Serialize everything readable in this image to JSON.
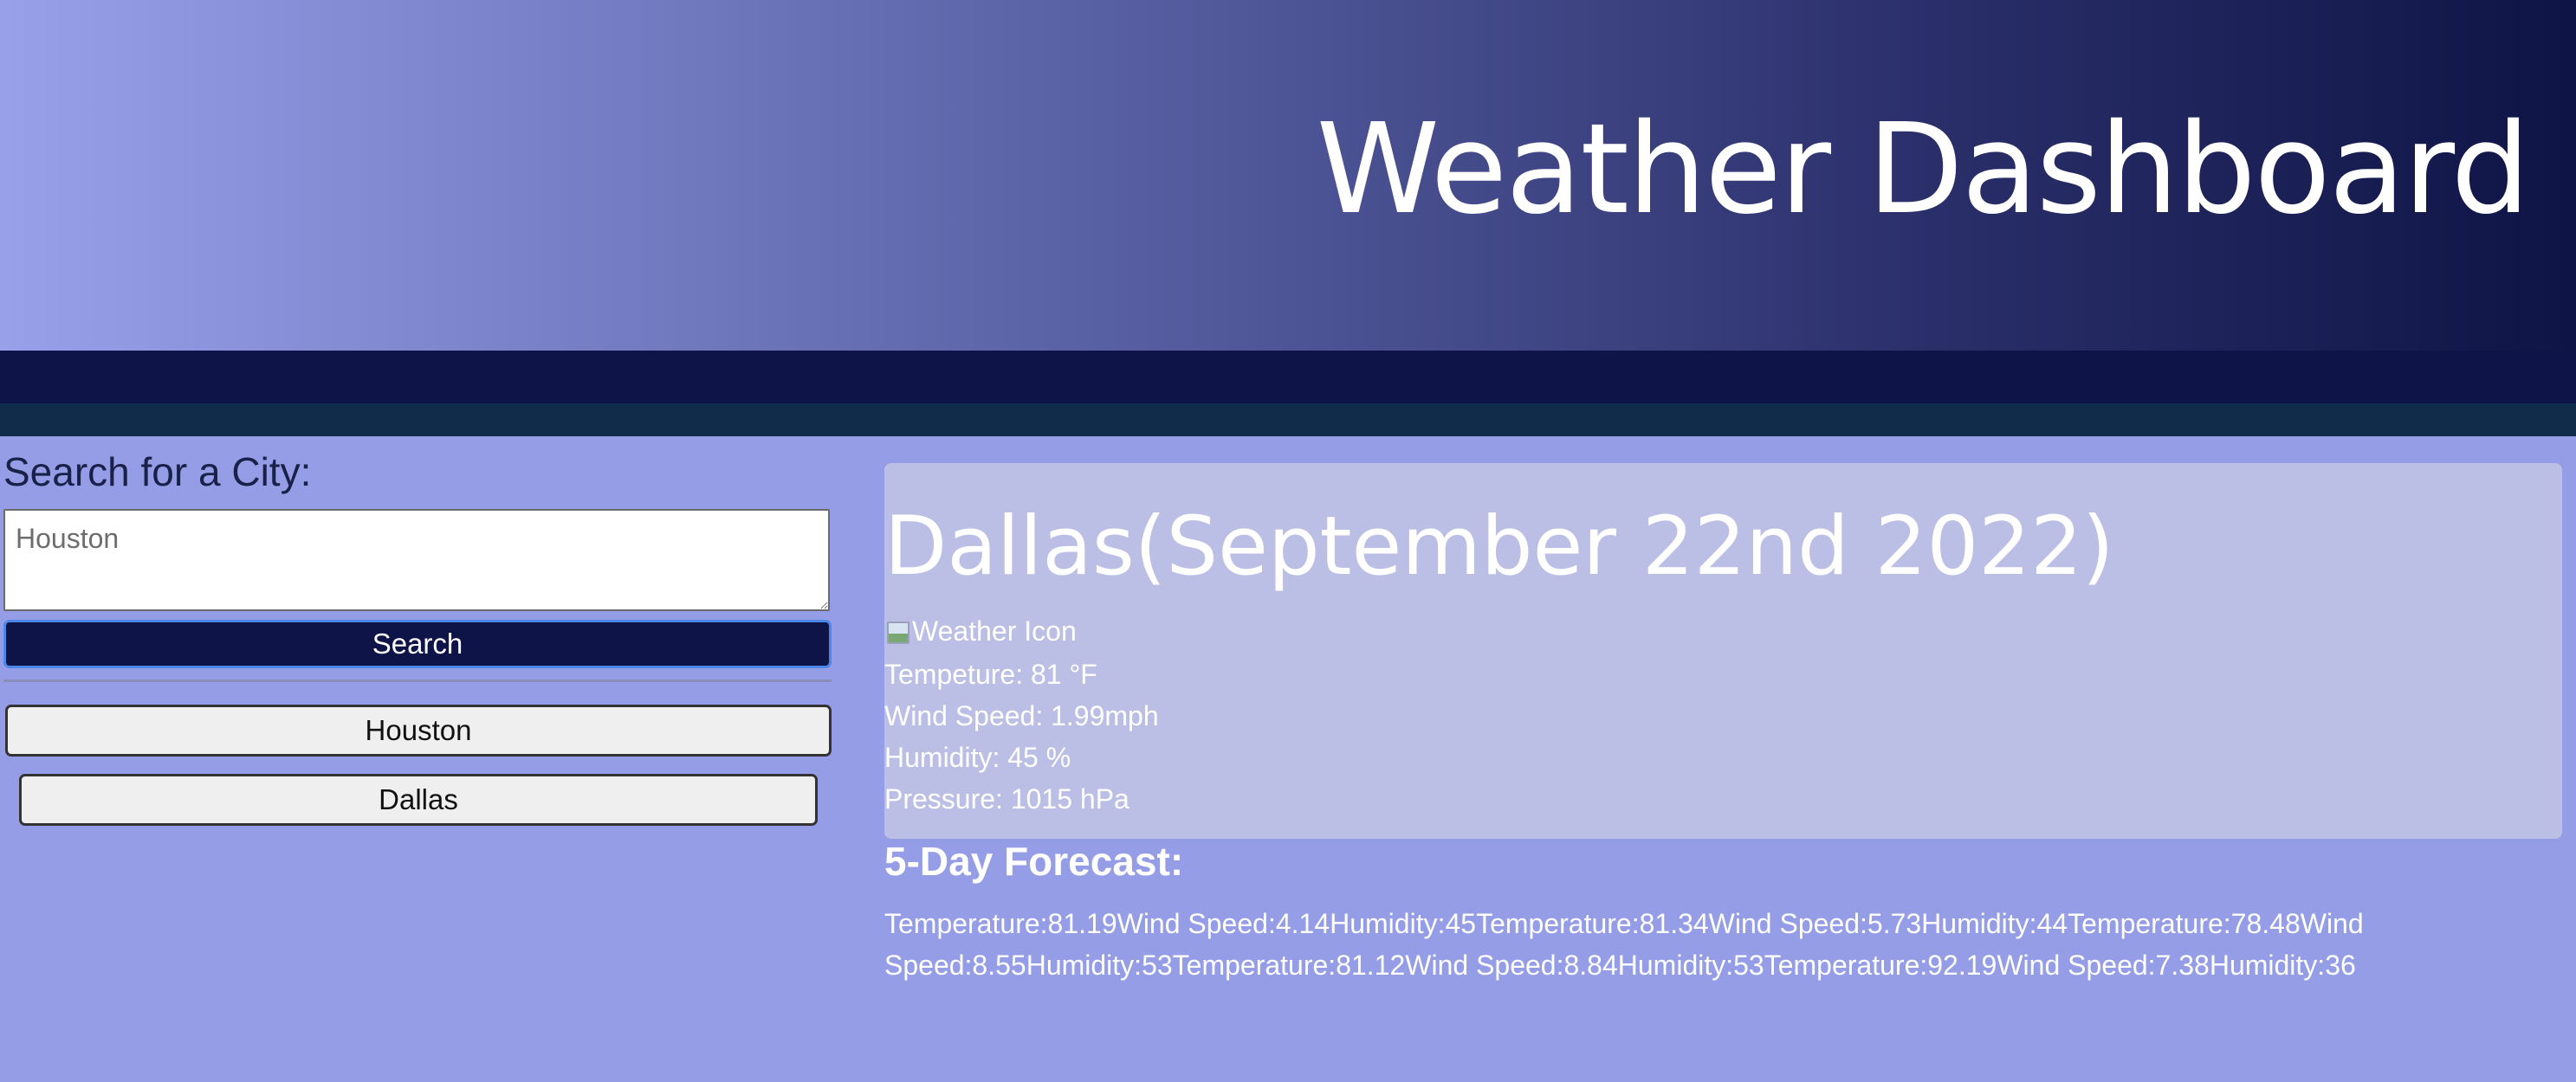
{
  "header": {
    "title": "Weather Dashboard"
  },
  "sidebar": {
    "heading": "Search for a City:",
    "search_placeholder": "Houston",
    "search_value": "",
    "search_button_label": "Search",
    "history": [
      {
        "label": "Houston"
      },
      {
        "label": "Dallas"
      }
    ]
  },
  "current": {
    "title": "Dallas(September 22nd 2022)",
    "icon_alt": "Weather Icon",
    "icon_name": "broken-image-icon",
    "temperature": "Tempeture: 81 °F",
    "wind": "Wind Speed: 1.99mph",
    "humidity": "Humidity: 45 %",
    "pressure": "Pressure: 1015 hPa"
  },
  "forecast": {
    "heading": "5-Day Forecast:",
    "days": [
      {
        "temperature": "Temperature:81.19",
        "wind": "Wind Speed:4.14",
        "humidity": "Humidity:45"
      },
      {
        "temperature": "Temperature:81.34",
        "wind": "Wind Speed:5.73",
        "humidity": "Humidity:44"
      },
      {
        "temperature": "Temperature:78.48",
        "wind": "Wind Speed:8.55",
        "humidity": "Humidity:53"
      },
      {
        "temperature": "Temperature:81.12",
        "wind": "Wind Speed:8.84",
        "humidity": "Humidity:53"
      },
      {
        "temperature": "Temperature:92.19",
        "wind": "Wind Speed:7.38",
        "humidity": "Humidity:36"
      }
    ]
  },
  "colors": {
    "header_start": "#98a0ea",
    "header_end": "#0e1445",
    "band_dark": "#0e1447",
    "band_teal": "#112b4b",
    "page_bg": "#949de6",
    "card_bg": "#bcbfe5",
    "search_button_bg": "#0e1447",
    "search_button_border": "#4c86e6"
  }
}
